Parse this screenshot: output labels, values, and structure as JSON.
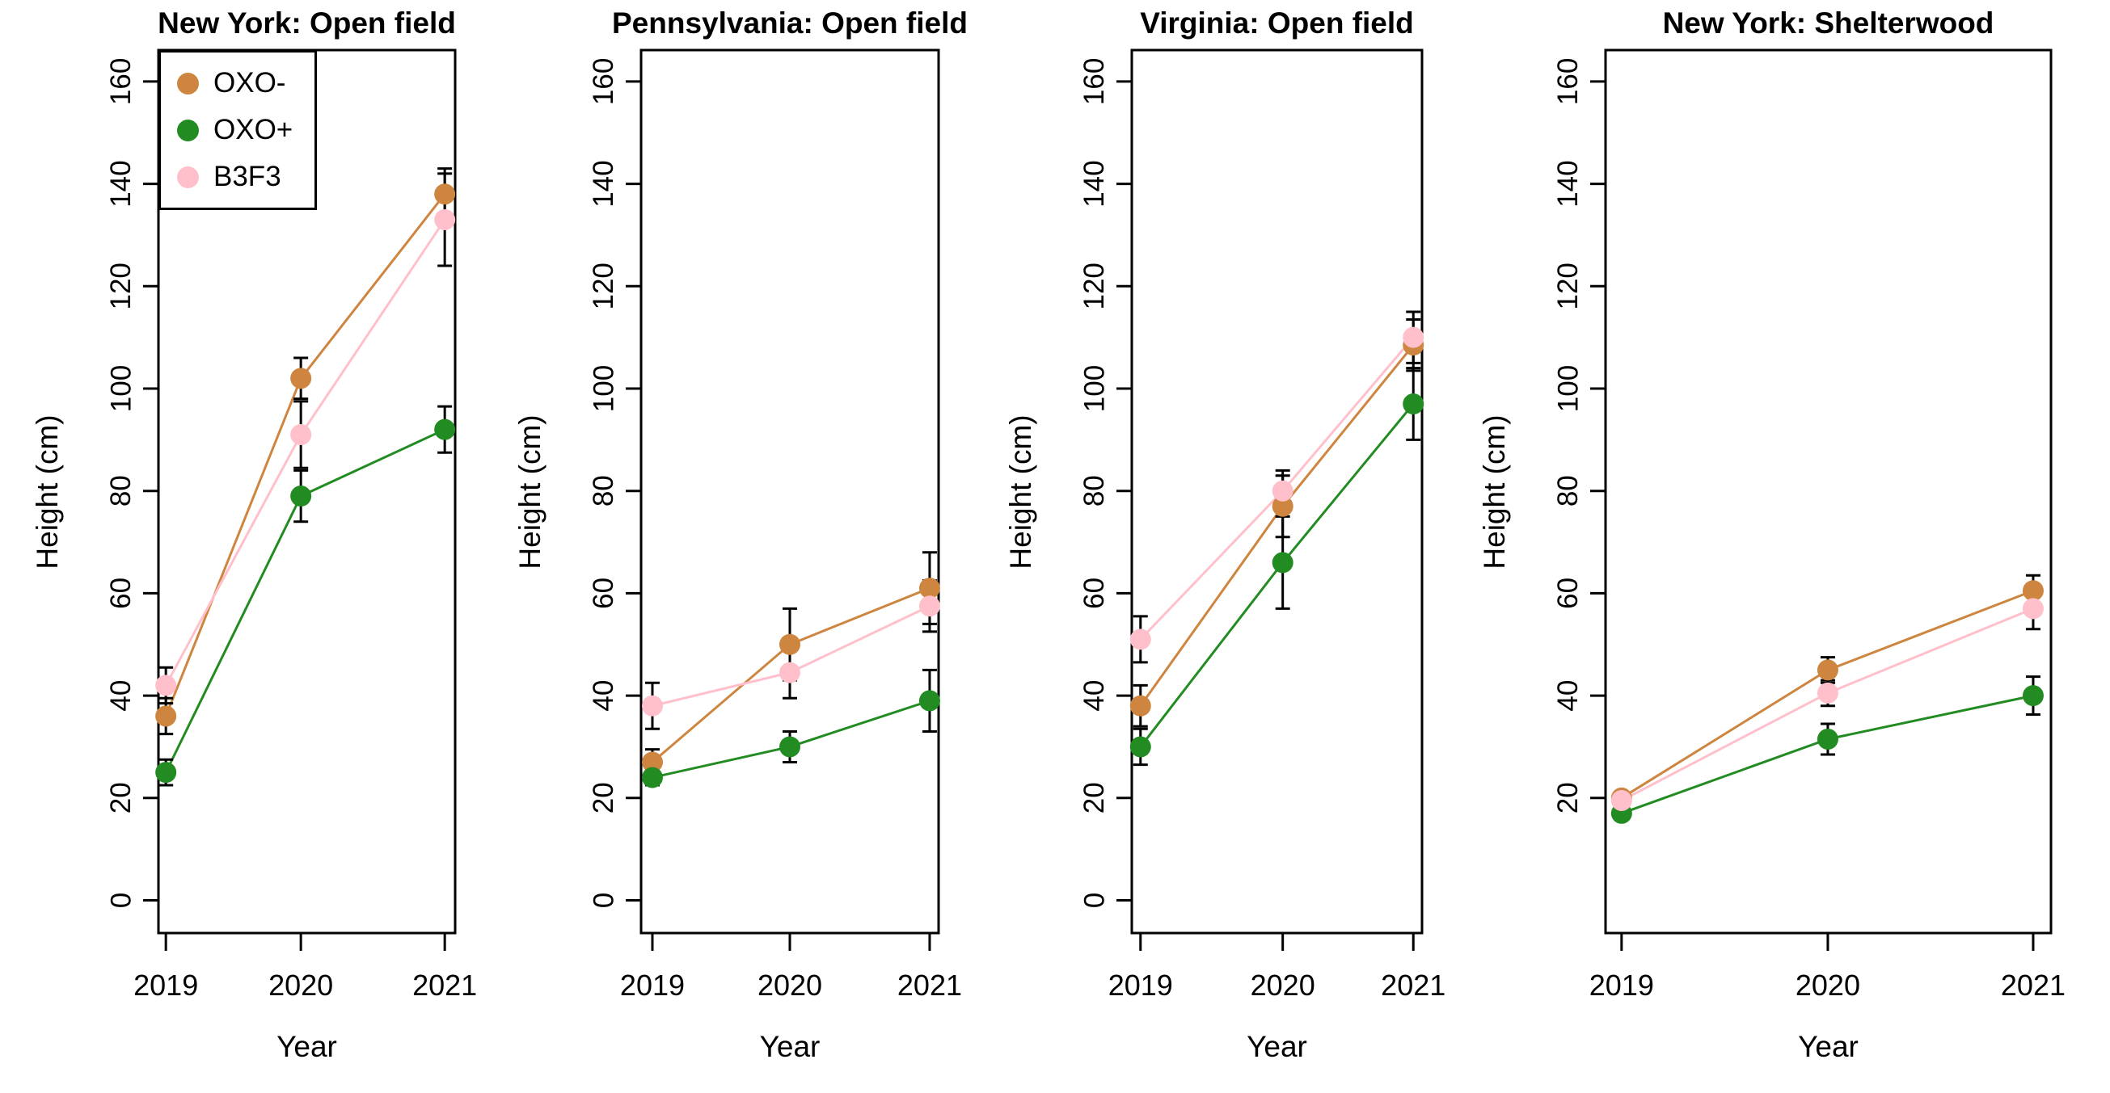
{
  "figure": {
    "ylabel": "Height (cm)",
    "xlabel": "Year",
    "years": [
      "2019",
      "2020",
      "2021"
    ],
    "background": "#ffffff",
    "axis_color": "#000000",
    "error_bar_color": "#000000",
    "legend": {
      "location": "top-left of first panel",
      "items": [
        {
          "label": "OXO-",
          "color": "#CD853F"
        },
        {
          "label": "OXO+",
          "color": "#228B22"
        },
        {
          "label": "B3F3",
          "color": "#FFC0CB"
        }
      ]
    }
  },
  "chart_data": [
    {
      "type": "line",
      "title": "New York: Open field",
      "xlabel": "Year",
      "ylabel": "Height (cm)",
      "x": [
        2019,
        2020,
        2021
      ],
      "ylim": [
        0,
        160
      ],
      "yticks": [
        0,
        20,
        40,
        60,
        80,
        100,
        120,
        140,
        160
      ],
      "grid": false,
      "legend_position": "top-left",
      "series": [
        {
          "name": "OXO-",
          "color": "#CD853F",
          "values": [
            36,
            102,
            138
          ],
          "errors": [
            3.5,
            4,
            5
          ]
        },
        {
          "name": "OXO+",
          "color": "#228B22",
          "values": [
            25,
            79,
            92
          ],
          "errors": [
            2.5,
            5,
            4.5
          ]
        },
        {
          "name": "B3F3",
          "color": "#FFC0CB",
          "values": [
            42,
            91,
            133
          ],
          "errors": [
            3.5,
            6.5,
            9
          ]
        }
      ]
    },
    {
      "type": "line",
      "title": "Pennsylvania: Open field",
      "xlabel": "Year",
      "ylabel": "Height (cm)",
      "x": [
        2019,
        2020,
        2021
      ],
      "ylim": [
        0,
        160
      ],
      "yticks": [
        0,
        20,
        40,
        60,
        80,
        100,
        120,
        140,
        160
      ],
      "grid": false,
      "legend_position": "none",
      "series": [
        {
          "name": "OXO-",
          "color": "#CD853F",
          "values": [
            27,
            50,
            61
          ],
          "errors": [
            2.5,
            7,
            7
          ]
        },
        {
          "name": "OXO+",
          "color": "#228B22",
          "values": [
            24,
            30,
            39
          ],
          "errors": [
            1.5,
            3,
            6
          ]
        },
        {
          "name": "B3F3",
          "color": "#FFC0CB",
          "values": [
            38,
            44.5,
            57.5
          ],
          "errors": [
            4.5,
            5,
            5
          ]
        }
      ]
    },
    {
      "type": "line",
      "title": "Virginia: Open field",
      "xlabel": "Year",
      "ylabel": "Height (cm)",
      "x": [
        2019,
        2020,
        2021
      ],
      "ylim": [
        0,
        160
      ],
      "yticks": [
        0,
        20,
        40,
        60,
        80,
        100,
        120,
        140,
        160
      ],
      "grid": false,
      "legend_position": "none",
      "series": [
        {
          "name": "OXO-",
          "color": "#CD853F",
          "values": [
            38,
            77,
            108.5
          ],
          "errors": [
            4,
            6,
            5
          ]
        },
        {
          "name": "OXO+",
          "color": "#228B22",
          "values": [
            30,
            66,
            97
          ],
          "errors": [
            3.5,
            9,
            7
          ]
        },
        {
          "name": "B3F3",
          "color": "#FFC0CB",
          "values": [
            51,
            80,
            110
          ],
          "errors": [
            4.5,
            4,
            5
          ]
        }
      ]
    },
    {
      "type": "line",
      "title": "New York: Shelterwood",
      "xlabel": "Year",
      "ylabel": "Height (cm)",
      "x": [
        2019,
        2020,
        2021
      ],
      "ylim": [
        0,
        160
      ],
      "yticks": [
        20,
        40,
        60,
        80,
        100,
        120,
        140,
        160
      ],
      "grid": false,
      "legend_position": "none",
      "series": [
        {
          "name": "OXO-",
          "color": "#CD853F",
          "values": [
            20,
            45,
            60.5
          ],
          "errors": [
            1,
            2.5,
            3
          ]
        },
        {
          "name": "OXO+",
          "color": "#228B22",
          "values": [
            17,
            31.5,
            40
          ],
          "errors": [
            1,
            3,
            3.7
          ]
        },
        {
          "name": "B3F3",
          "color": "#FFC0CB",
          "values": [
            19.5,
            40.5,
            57
          ],
          "errors": [
            1,
            2.5,
            4
          ]
        }
      ]
    }
  ]
}
